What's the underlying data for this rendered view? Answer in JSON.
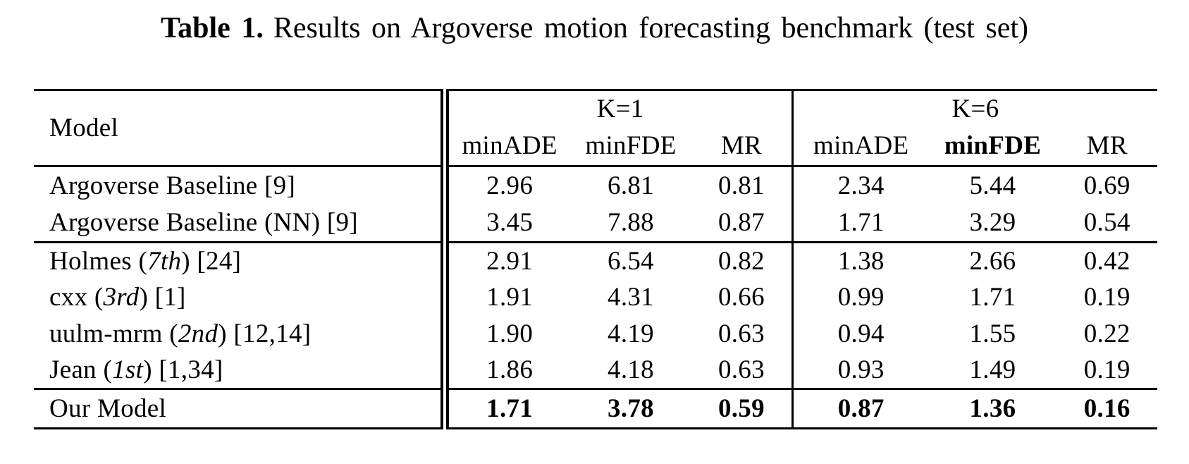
{
  "title": {
    "label": "Table 1.",
    "text": "Results on Argoverse motion forecasting benchmark (test set)"
  },
  "table": {
    "model_header": "Model",
    "groups": [
      {
        "label": "K=1",
        "columns": [
          {
            "label": "minADE",
            "bold": false
          },
          {
            "label": "minFDE",
            "bold": false
          },
          {
            "label": "MR",
            "bold": false
          }
        ]
      },
      {
        "label": "K=6",
        "columns": [
          {
            "label": "minADE",
            "bold": false
          },
          {
            "label": "minFDE",
            "bold": true
          },
          {
            "label": "MR",
            "bold": false
          }
        ]
      }
    ],
    "sections": [
      {
        "rows": [
          {
            "model": {
              "pre": "Argoverse Baseline [9]",
              "italic": "",
              "post": ""
            },
            "values": [
              "2.96",
              "6.81",
              "0.81",
              "2.34",
              "5.44",
              "0.69"
            ],
            "emphasis": false
          },
          {
            "model": {
              "pre": "Argoverse Baseline (NN) [9]",
              "italic": "",
              "post": ""
            },
            "values": [
              "3.45",
              "7.88",
              "0.87",
              "1.71",
              "3.29",
              "0.54"
            ],
            "emphasis": false
          }
        ]
      },
      {
        "rows": [
          {
            "model": {
              "pre": "Holmes (",
              "italic": "7th",
              "post": ") [24]"
            },
            "values": [
              "2.91",
              "6.54",
              "0.82",
              "1.38",
              "2.66",
              "0.42"
            ],
            "emphasis": false
          },
          {
            "model": {
              "pre": "cxx (",
              "italic": "3rd",
              "post": ") [1]"
            },
            "values": [
              "1.91",
              "4.31",
              "0.66",
              "0.99",
              "1.71",
              "0.19"
            ],
            "emphasis": false
          },
          {
            "model": {
              "pre": "uulm-mrm (",
              "italic": "2nd",
              "post": ") [12,14]"
            },
            "values": [
              "1.90",
              "4.19",
              "0.63",
              "0.94",
              "1.55",
              "0.22"
            ],
            "emphasis": false
          },
          {
            "model": {
              "pre": "Jean (",
              "italic": "1st",
              "post": ") [1,34]"
            },
            "values": [
              "1.86",
              "4.18",
              "0.63",
              "0.93",
              "1.49",
              "0.19"
            ],
            "emphasis": false
          }
        ]
      },
      {
        "rows": [
          {
            "model": {
              "pre": "Our Model",
              "italic": "",
              "post": ""
            },
            "values": [
              "1.71",
              "3.78",
              "0.59",
              "0.87",
              "1.36",
              "0.16"
            ],
            "emphasis": true
          }
        ]
      }
    ]
  }
}
